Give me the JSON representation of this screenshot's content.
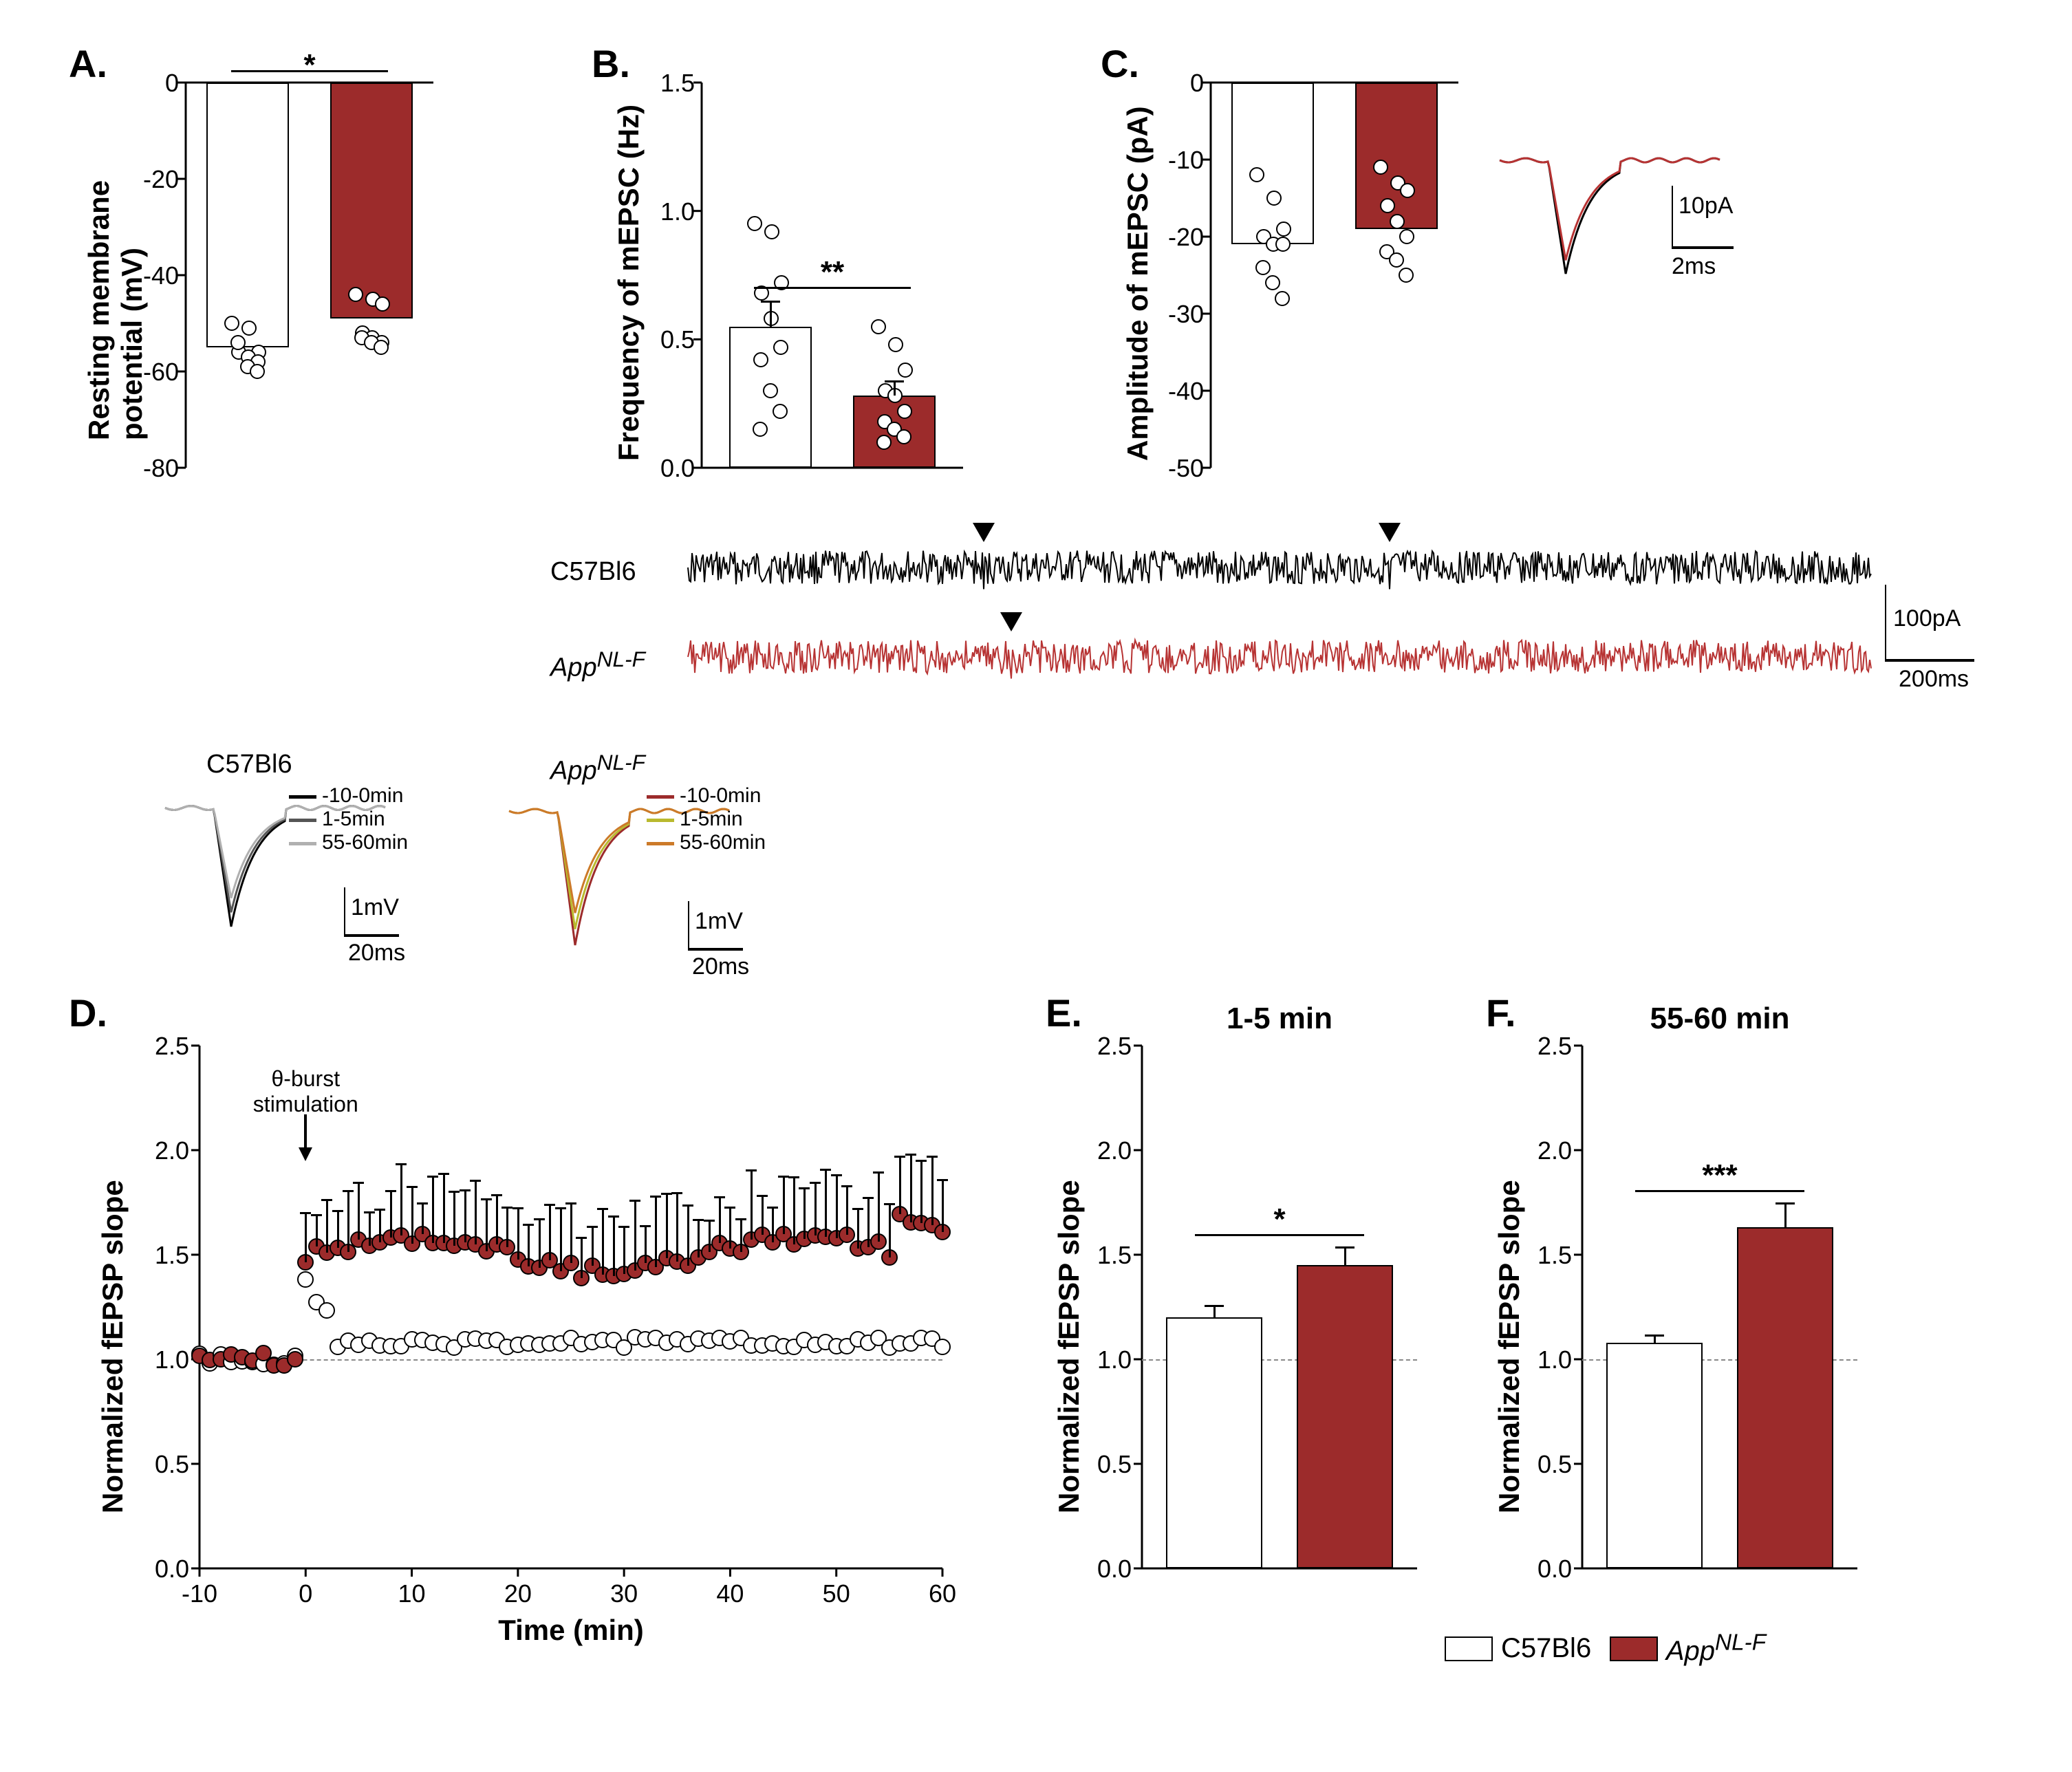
{
  "colors": {
    "control": "#ffffff",
    "app": "#9c2b2b",
    "app_line": "#b73333",
    "black": "#000000",
    "grey1": "#555555",
    "grey2": "#b0b0b0",
    "olives": [
      "#9c2b2b",
      "#b9b92e",
      "#cc7a29"
    ]
  },
  "groups": {
    "control": "C57Bl6",
    "app_prefix": "App",
    "app_suffix": "NL-F"
  },
  "panelA": {
    "label": "A.",
    "ylabel": "Resting membrane\npotential (mV)",
    "ylim": [
      -80,
      0
    ],
    "ytick_step": 20,
    "sig": "*",
    "bars": [
      {
        "name": "control",
        "value": -55,
        "scatter": [
          -50,
          -51,
          -56,
          -56,
          -57,
          -58,
          -54,
          -59,
          -60
        ]
      },
      {
        "name": "app",
        "value": -49,
        "scatter": [
          -44,
          -45,
          -46,
          -52,
          -53,
          -54,
          -53,
          -54,
          -55
        ]
      }
    ]
  },
  "panelB": {
    "label": "B.",
    "ylabel": "Frequency of mEPSC (Hz)",
    "ylim": [
      0.0,
      1.5
    ],
    "ytick_step": 0.5,
    "sig": "**",
    "bars": [
      {
        "name": "control",
        "value": 0.55,
        "err": 0.1,
        "scatter": [
          0.95,
          0.92,
          0.72,
          0.68,
          0.58,
          0.47,
          0.42,
          0.3,
          0.22,
          0.15
        ]
      },
      {
        "name": "app",
        "value": 0.28,
        "err": 0.06,
        "scatter": [
          0.55,
          0.48,
          0.38,
          0.3,
          0.28,
          0.22,
          0.18,
          0.15,
          0.12,
          0.1
        ]
      }
    ]
  },
  "panelC": {
    "label": "C.",
    "ylabel": "Amplitude of mEPSC (pA)",
    "ylim": [
      -50,
      0
    ],
    "ytick_step": 10,
    "bars": [
      {
        "name": "control",
        "value": -21,
        "scatter": [
          -12,
          -15,
          -19,
          -20,
          -21,
          -21,
          -24,
          -26,
          -28
        ]
      },
      {
        "name": "app",
        "value": -19,
        "scatter": [
          -11,
          -13,
          -14,
          -16,
          -18,
          -20,
          -22,
          -23,
          -25
        ]
      }
    ],
    "scalebar": {
      "x_label": "2ms",
      "y_label": "10pA"
    }
  },
  "traces": {
    "labels": [
      "C57Bl6",
      "App"
    ],
    "scalebar": {
      "x_label": "200ms",
      "y_label": "100pA"
    }
  },
  "insets": {
    "left_label": "C57Bl6",
    "right_label_prefix": "App",
    "right_label_suffix": "NL-F",
    "legend_items": [
      "-10-0min",
      "1-5min",
      "55-60min"
    ],
    "scalebar": {
      "x_label": "20ms",
      "y_label": "1mV"
    }
  },
  "panelD": {
    "label": "D.",
    "ylabel": "Normalized fEPSP slope",
    "xlabel": "Time (min)",
    "ylim": [
      0.0,
      2.5
    ],
    "ytick_step": 0.5,
    "xlim": [
      -10,
      60
    ],
    "xtick_step": 10,
    "stim_label": "θ-burst\nstimulation",
    "series": {
      "control": {
        "x_start": -10,
        "x_step": 1,
        "baseline": 1.0,
        "post": 1.08,
        "jump_at": 0,
        "err": 0.02
      },
      "app": {
        "x_start": -10,
        "x_step": 1,
        "baseline": 1.0,
        "post": 1.55,
        "jump_at": 0,
        "err": 0.18
      }
    }
  },
  "panelE": {
    "label": "E.",
    "title": "1-5 min",
    "ylabel": "Normalized fEPSP slope",
    "ylim": [
      0.0,
      2.5
    ],
    "ytick_step": 0.5,
    "sig": "*",
    "bars": [
      {
        "name": "control",
        "value": 1.2,
        "err": 0.06
      },
      {
        "name": "app",
        "value": 1.45,
        "err": 0.09
      }
    ]
  },
  "panelF": {
    "label": "F.",
    "title": "55-60 min",
    "ylabel": "Normalized fEPSP slope",
    "ylim": [
      0.0,
      2.5
    ],
    "ytick_step": 0.5,
    "sig": "***",
    "bars": [
      {
        "name": "control",
        "value": 1.08,
        "err": 0.04
      },
      {
        "name": "app",
        "value": 1.63,
        "err": 0.12
      }
    ]
  },
  "legend": {
    "control": "C57Bl6",
    "app_prefix": "App",
    "app_suffix": "NL-F"
  }
}
